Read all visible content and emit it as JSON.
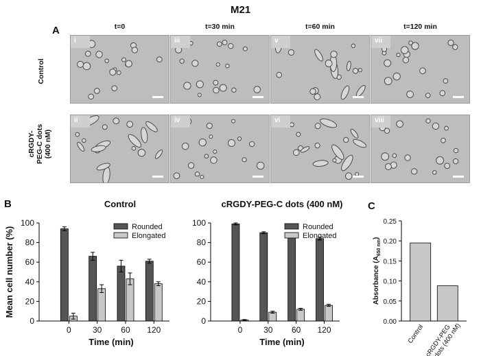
{
  "figure": {
    "title": "M21",
    "panel_labels": {
      "a": "A",
      "b": "B",
      "c": "C"
    }
  },
  "micrographs": {
    "columns": [
      "t=0",
      "t=30 min",
      "t=60 min",
      "t=120 min"
    ],
    "rows": [
      {
        "label": "Control",
        "tiles": [
          "i",
          "iii",
          "v",
          "vii"
        ]
      },
      {
        "label_lines": [
          "cRGDY-",
          "PEG-C dots",
          "(400 nM)"
        ],
        "tiles": [
          "ii",
          "iv",
          "vi",
          "viii"
        ]
      }
    ]
  },
  "chart_data": [
    {
      "type": "bar",
      "title": "Control",
      "xlabel": "Time (min)",
      "ylabel": "Mean cell number (%)",
      "ylim": [
        0,
        100
      ],
      "yticks": [
        "0",
        "20",
        "40",
        "60",
        "80",
        "100"
      ],
      "categories": [
        "0",
        "30",
        "60",
        "120"
      ],
      "legend_position": "top-right",
      "series": [
        {
          "name": "Rounded",
          "color": "#555555",
          "values": [
            94,
            66,
            56,
            61
          ],
          "errors": [
            2,
            4,
            6,
            2
          ]
        },
        {
          "name": "Elongated",
          "color": "#c8c8c8",
          "values": [
            5,
            33,
            43,
            38
          ],
          "errors": [
            3,
            4,
            6,
            2
          ]
        }
      ]
    },
    {
      "type": "bar",
      "title": "cRGDY-PEG-C dots (400 nM)",
      "xlabel": "Time (min)",
      "ylabel": "",
      "ylim": [
        0,
        100
      ],
      "yticks": [
        "0",
        "20",
        "40",
        "60",
        "80",
        "100"
      ],
      "categories": [
        "0",
        "30",
        "60",
        "120"
      ],
      "legend_position": "top-right",
      "series": [
        {
          "name": "Rounded",
          "color": "#555555",
          "values": [
            99,
            90,
            88,
            84
          ],
          "errors": [
            1,
            1,
            1,
            1.5
          ]
        },
        {
          "name": "Elongated",
          "color": "#c8c8c8",
          "values": [
            1,
            9,
            12,
            16
          ],
          "errors": [
            0.5,
            1,
            1,
            1
          ]
        }
      ]
    },
    {
      "type": "bar",
      "title": "",
      "xlabel": "",
      "ylabel_main": "Absorbance (A",
      "ylabel_sub": "650 nm",
      "ylabel_end": ")",
      "ylim": [
        0,
        0.25
      ],
      "yticks": [
        "0.00",
        "0.05",
        "0.10",
        "0.15",
        "0.20",
        "0.25"
      ],
      "categories": [
        "Control",
        "cRGDY-PEG C-dots (400 nM)"
      ],
      "category_lines": [
        [
          "Control"
        ],
        [
          "cRGDY-PEG",
          "C-dots (400 nM)"
        ]
      ],
      "series": [
        {
          "name": "",
          "color": "#c8c8c8",
          "values": [
            0.195,
            0.088
          ]
        }
      ]
    }
  ]
}
